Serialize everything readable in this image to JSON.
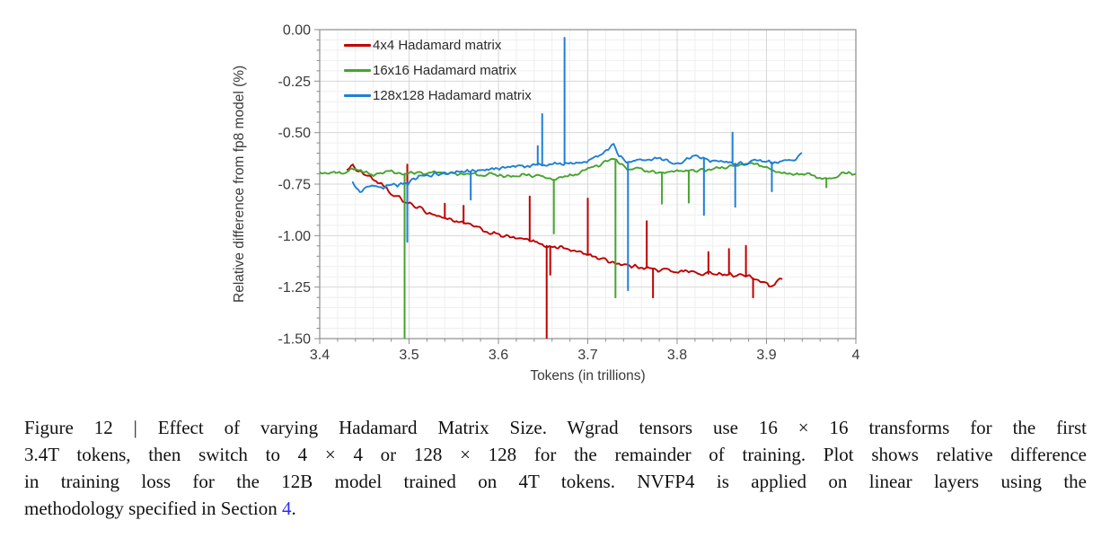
{
  "chart_data": {
    "type": "line",
    "title": "",
    "xlabel": "Tokens (in trillions)",
    "ylabel": "Relative difference from fp8 model (%)",
    "xlim": [
      3.4,
      4.0
    ],
    "ylim": [
      -1.5,
      0.0
    ],
    "grid": "on",
    "legend_position": "top-left-inside",
    "x_ticks": {
      "values": [
        3.4,
        3.5,
        3.6,
        3.7,
        3.8,
        3.9,
        4.0
      ],
      "labels": [
        "3.4",
        "3.5",
        "3.6",
        "3.7",
        "3.8",
        "3.9",
        "4"
      ],
      "minor_step": 0.02
    },
    "y_ticks": {
      "values": [
        0.0,
        -0.25,
        -0.5,
        -0.75,
        -1.0,
        -1.25,
        -1.5
      ],
      "labels": [
        "0.00",
        "-0.25",
        "-0.50",
        "-0.75",
        "-1.00",
        "-1.25",
        "-1.50"
      ],
      "minor_step": 0.05
    },
    "series": [
      {
        "name": "4x4 Hadamard matrix",
        "color": "#c00000",
        "noise": 0.012,
        "points": [
          [
            3.431,
            -0.675
          ],
          [
            3.437,
            -0.665
          ],
          [
            3.443,
            -0.68
          ],
          [
            3.45,
            -0.7
          ],
          [
            3.458,
            -0.72
          ],
          [
            3.465,
            -0.74
          ],
          [
            3.472,
            -0.765
          ],
          [
            3.48,
            -0.8
          ],
          [
            3.488,
            -0.815
          ],
          [
            3.495,
            -0.835
          ],
          [
            3.5,
            -0.845
          ],
          [
            3.508,
            -0.86
          ],
          [
            3.515,
            -0.875
          ],
          [
            3.523,
            -0.89
          ],
          [
            3.53,
            -0.9
          ],
          [
            3.54,
            -0.915
          ],
          [
            3.55,
            -0.925
          ],
          [
            3.56,
            -0.94
          ],
          [
            3.57,
            -0.95
          ],
          [
            3.58,
            -0.97
          ],
          [
            3.59,
            -0.985
          ],
          [
            3.6,
            -0.995
          ],
          [
            3.61,
            -1.005
          ],
          [
            3.62,
            -1.015
          ],
          [
            3.63,
            -1.02
          ],
          [
            3.64,
            -1.03
          ],
          [
            3.65,
            -1.045
          ],
          [
            3.66,
            -1.055
          ],
          [
            3.67,
            -1.055
          ],
          [
            3.68,
            -1.07
          ],
          [
            3.69,
            -1.08
          ],
          [
            3.7,
            -1.09
          ],
          [
            3.71,
            -1.105
          ],
          [
            3.72,
            -1.12
          ],
          [
            3.73,
            -1.13
          ],
          [
            3.74,
            -1.14
          ],
          [
            3.75,
            -1.15
          ],
          [
            3.76,
            -1.15
          ],
          [
            3.77,
            -1.16
          ],
          [
            3.78,
            -1.17
          ],
          [
            3.79,
            -1.165
          ],
          [
            3.8,
            -1.175
          ],
          [
            3.81,
            -1.17
          ],
          [
            3.82,
            -1.18
          ],
          [
            3.83,
            -1.19
          ],
          [
            3.84,
            -1.18
          ],
          [
            3.85,
            -1.185
          ],
          [
            3.86,
            -1.19
          ],
          [
            3.87,
            -1.19
          ],
          [
            3.88,
            -1.2
          ],
          [
            3.89,
            -1.215
          ],
          [
            3.9,
            -1.235
          ],
          [
            3.906,
            -1.25
          ],
          [
            3.912,
            -1.23
          ],
          [
            3.917,
            -1.21
          ]
        ],
        "spikes": [
          [
            3.498,
            -0.655
          ],
          [
            3.54,
            -0.845
          ],
          [
            3.561,
            -0.855
          ],
          [
            3.635,
            -0.81
          ],
          [
            3.654,
            -1.56
          ],
          [
            3.658,
            -1.19
          ],
          [
            3.7,
            -0.82
          ],
          [
            3.766,
            -0.93
          ],
          [
            3.773,
            -1.3
          ],
          [
            3.835,
            -1.08
          ],
          [
            3.858,
            -1.065
          ],
          [
            3.877,
            -1.05
          ],
          [
            3.885,
            -1.3
          ]
        ]
      },
      {
        "name": "16x16 Hadamard matrix",
        "color": "#46a42f",
        "noise": 0.011,
        "points": [
          [
            3.4,
            -0.69
          ],
          [
            3.41,
            -0.7
          ],
          [
            3.42,
            -0.695
          ],
          [
            3.43,
            -0.685
          ],
          [
            3.44,
            -0.675
          ],
          [
            3.45,
            -0.695
          ],
          [
            3.46,
            -0.705
          ],
          [
            3.47,
            -0.695
          ],
          [
            3.48,
            -0.69
          ],
          [
            3.49,
            -0.7
          ],
          [
            3.5,
            -0.7
          ],
          [
            3.51,
            -0.695
          ],
          [
            3.52,
            -0.7
          ],
          [
            3.53,
            -0.69
          ],
          [
            3.54,
            -0.695
          ],
          [
            3.55,
            -0.7
          ],
          [
            3.56,
            -0.705
          ],
          [
            3.57,
            -0.7
          ],
          [
            3.58,
            -0.71
          ],
          [
            3.59,
            -0.7
          ],
          [
            3.6,
            -0.705
          ],
          [
            3.61,
            -0.71
          ],
          [
            3.62,
            -0.715
          ],
          [
            3.63,
            -0.705
          ],
          [
            3.64,
            -0.71
          ],
          [
            3.65,
            -0.715
          ],
          [
            3.66,
            -0.73
          ],
          [
            3.67,
            -0.72
          ],
          [
            3.68,
            -0.71
          ],
          [
            3.69,
            -0.695
          ],
          [
            3.7,
            -0.68
          ],
          [
            3.71,
            -0.66
          ],
          [
            3.72,
            -0.645
          ],
          [
            3.728,
            -0.625
          ],
          [
            3.733,
            -0.64
          ],
          [
            3.74,
            -0.665
          ],
          [
            3.75,
            -0.68
          ],
          [
            3.76,
            -0.68
          ],
          [
            3.77,
            -0.69
          ],
          [
            3.78,
            -0.7
          ],
          [
            3.79,
            -0.695
          ],
          [
            3.8,
            -0.69
          ],
          [
            3.81,
            -0.685
          ],
          [
            3.82,
            -0.69
          ],
          [
            3.83,
            -0.68
          ],
          [
            3.84,
            -0.68
          ],
          [
            3.85,
            -0.67
          ],
          [
            3.86,
            -0.665
          ],
          [
            3.87,
            -0.66
          ],
          [
            3.88,
            -0.645
          ],
          [
            3.89,
            -0.65
          ],
          [
            3.9,
            -0.67
          ],
          [
            3.91,
            -0.69
          ],
          [
            3.92,
            -0.7
          ],
          [
            3.93,
            -0.705
          ],
          [
            3.94,
            -0.7
          ],
          [
            3.95,
            -0.705
          ],
          [
            3.96,
            -0.715
          ],
          [
            3.97,
            -0.73
          ],
          [
            3.98,
            -0.705
          ],
          [
            3.99,
            -0.7
          ],
          [
            4.0,
            -0.695
          ]
        ],
        "spikes": [
          [
            3.495,
            -1.56
          ],
          [
            3.662,
            -0.99
          ],
          [
            3.731,
            -1.3
          ],
          [
            3.783,
            -0.845
          ],
          [
            3.813,
            -0.84
          ],
          [
            3.967,
            -0.765
          ]
        ]
      },
      {
        "name": "128x128 Hadamard matrix",
        "color": "#1f7fd8",
        "noise": 0.013,
        "points": [
          [
            3.437,
            -0.745
          ],
          [
            3.442,
            -0.775
          ],
          [
            3.447,
            -0.79
          ],
          [
            3.452,
            -0.775
          ],
          [
            3.46,
            -0.76
          ],
          [
            3.47,
            -0.775
          ],
          [
            3.48,
            -0.755
          ],
          [
            3.49,
            -0.75
          ],
          [
            3.5,
            -0.745
          ],
          [
            3.51,
            -0.72
          ],
          [
            3.52,
            -0.705
          ],
          [
            3.53,
            -0.7
          ],
          [
            3.54,
            -0.7
          ],
          [
            3.55,
            -0.695
          ],
          [
            3.56,
            -0.69
          ],
          [
            3.57,
            -0.69
          ],
          [
            3.58,
            -0.685
          ],
          [
            3.59,
            -0.68
          ],
          [
            3.6,
            -0.675
          ],
          [
            3.61,
            -0.67
          ],
          [
            3.62,
            -0.665
          ],
          [
            3.63,
            -0.66
          ],
          [
            3.64,
            -0.655
          ],
          [
            3.65,
            -0.66
          ],
          [
            3.66,
            -0.655
          ],
          [
            3.67,
            -0.65
          ],
          [
            3.68,
            -0.65
          ],
          [
            3.69,
            -0.645
          ],
          [
            3.7,
            -0.64
          ],
          [
            3.71,
            -0.62
          ],
          [
            3.72,
            -0.6
          ],
          [
            3.729,
            -0.545
          ],
          [
            3.735,
            -0.615
          ],
          [
            3.745,
            -0.645
          ],
          [
            3.755,
            -0.64
          ],
          [
            3.765,
            -0.635
          ],
          [
            3.775,
            -0.62
          ],
          [
            3.785,
            -0.625
          ],
          [
            3.795,
            -0.645
          ],
          [
            3.805,
            -0.64
          ],
          [
            3.815,
            -0.625
          ],
          [
            3.825,
            -0.62
          ],
          [
            3.835,
            -0.635
          ],
          [
            3.845,
            -0.64
          ],
          [
            3.855,
            -0.64
          ],
          [
            3.865,
            -0.65
          ],
          [
            3.875,
            -0.65
          ],
          [
            3.885,
            -0.64
          ],
          [
            3.895,
            -0.635
          ],
          [
            3.905,
            -0.645
          ],
          [
            3.915,
            -0.64
          ],
          [
            3.925,
            -0.635
          ],
          [
            3.932,
            -0.64
          ],
          [
            3.939,
            -0.605
          ]
        ],
        "spikes": [
          [
            3.498,
            -1.03
          ],
          [
            3.569,
            -0.825
          ],
          [
            3.644,
            -0.565
          ],
          [
            3.649,
            -0.41
          ],
          [
            3.674,
            -0.04
          ],
          [
            3.745,
            -1.265
          ],
          [
            3.83,
            -0.9
          ],
          [
            3.862,
            -0.5
          ],
          [
            3.865,
            -0.86
          ],
          [
            3.906,
            -0.785
          ]
        ]
      }
    ]
  },
  "caption": {
    "lines": [
      "Figure 12 | Effect of varying Hadamard Matrix Size. Wgrad tensors use 16 × 16 transforms for the first",
      "3.4T tokens, then switch to 4 × 4 or 128 × 128 for the remainder of training. Plot shows relative difference",
      "in training loss for the 12B model trained on 4T tokens. NVFP4 is applied on linear layers using the",
      "methodology specified in Section "
    ],
    "link_text": "4",
    "after_link": "."
  }
}
